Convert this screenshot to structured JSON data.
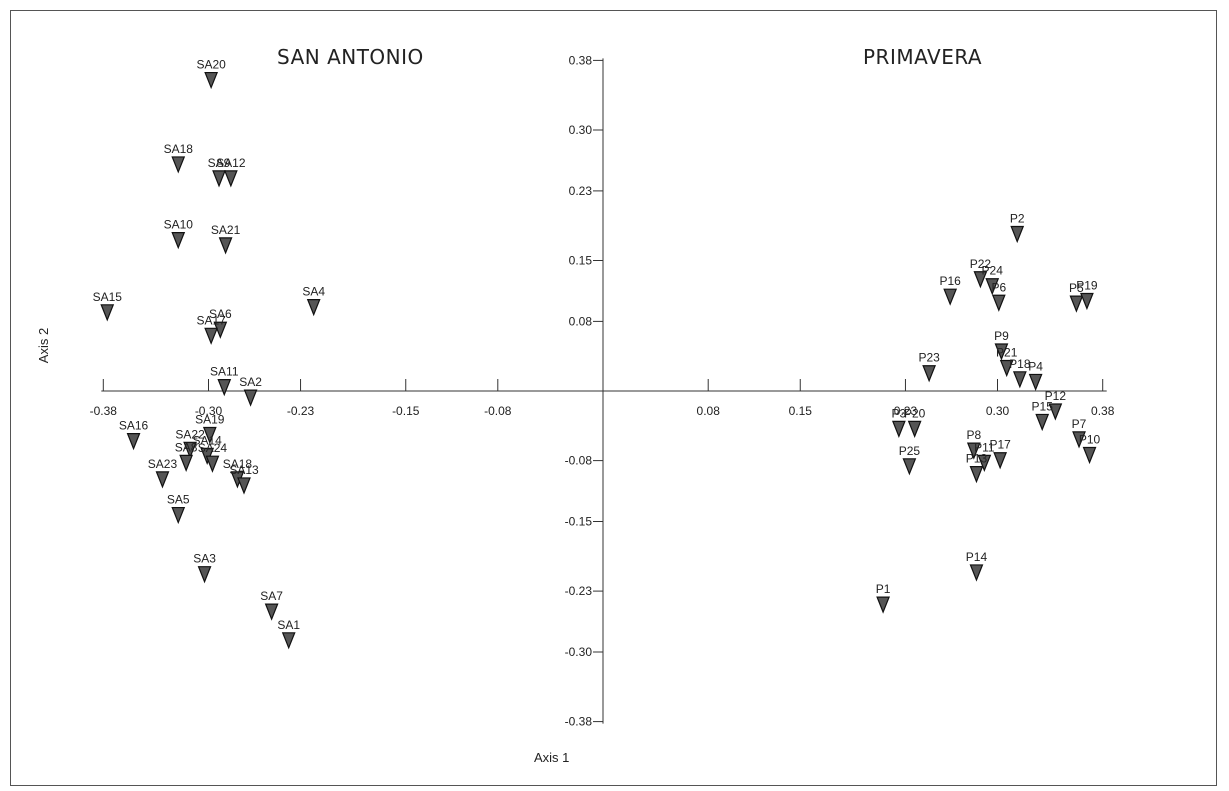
{
  "group_titles": {
    "left": "SAN ANTONIO",
    "right": "PRIMAVERA"
  },
  "chart_data": {
    "type": "scatter",
    "title": "",
    "xlabel": "Axis 1",
    "ylabel": "Axis 2",
    "xlim": [
      -0.38,
      0.38
    ],
    "ylim": [
      -0.38,
      0.38
    ],
    "grid": false,
    "marker": "inverted-triangle",
    "marker_color": "#333333",
    "x_ticks": [
      {
        "value": -0.38,
        "label": "-0.38"
      },
      {
        "value": -0.3,
        "label": "-0.30"
      },
      {
        "value": -0.23,
        "label": "-0.23"
      },
      {
        "value": -0.15,
        "label": "-0.15"
      },
      {
        "value": -0.08,
        "label": "-0.08"
      },
      {
        "value": 0.08,
        "label": "0.08"
      },
      {
        "value": 0.15,
        "label": "0.15"
      },
      {
        "value": 0.23,
        "label": "0.23"
      },
      {
        "value": 0.3,
        "label": "0.30"
      },
      {
        "value": 0.38,
        "label": "0.38"
      }
    ],
    "y_ticks": [
      {
        "value": 0.38,
        "label": "0.38"
      },
      {
        "value": 0.3,
        "label": "0.30"
      },
      {
        "value": 0.23,
        "label": "0.23"
      },
      {
        "value": 0.15,
        "label": "0.15"
      },
      {
        "value": 0.08,
        "label": "0.08"
      },
      {
        "value": -0.08,
        "label": "-0.08"
      },
      {
        "value": -0.15,
        "label": "-0.15"
      },
      {
        "value": -0.23,
        "label": "-0.23"
      },
      {
        "value": -0.3,
        "label": "-0.30"
      },
      {
        "value": -0.38,
        "label": "-0.38"
      }
    ],
    "points": [
      {
        "label": "SA20",
        "x": -0.298,
        "y": 0.358
      },
      {
        "label": "SA18",
        "x": -0.323,
        "y": 0.261
      },
      {
        "label": "SA9",
        "x": -0.292,
        "y": 0.245
      },
      {
        "label": "SA12",
        "x": -0.283,
        "y": 0.245
      },
      {
        "label": "SA10",
        "x": -0.323,
        "y": 0.174
      },
      {
        "label": "SA21",
        "x": -0.287,
        "y": 0.168
      },
      {
        "label": "SA4",
        "x": -0.22,
        "y": 0.097
      },
      {
        "label": "SA15",
        "x": -0.377,
        "y": 0.091
      },
      {
        "label": "SA6",
        "x": -0.291,
        "y": 0.071
      },
      {
        "label": "SA17",
        "x": -0.298,
        "y": 0.064
      },
      {
        "label": "SA11",
        "x": -0.288,
        "y": 0.005
      },
      {
        "label": "SA2",
        "x": -0.268,
        "y": -0.007
      },
      {
        "label": "SA16",
        "x": -0.357,
        "y": -0.057
      },
      {
        "label": "SA19",
        "x": -0.299,
        "y": -0.05
      },
      {
        "label": "SA22",
        "x": -0.314,
        "y": -0.067
      },
      {
        "label": "SA8",
        "x": -0.317,
        "y": -0.082
      },
      {
        "label": "SA14",
        "x": -0.301,
        "y": -0.074
      },
      {
        "label": "SA24",
        "x": -0.297,
        "y": -0.083
      },
      {
        "label": "SA23",
        "x": -0.335,
        "y": -0.101
      },
      {
        "label": "SA18",
        "x": -0.278,
        "y": -0.101
      },
      {
        "label": "SA13",
        "x": -0.273,
        "y": -0.108
      },
      {
        "label": "SA5",
        "x": -0.323,
        "y": -0.142
      },
      {
        "label": "SA3",
        "x": -0.303,
        "y": -0.21
      },
      {
        "label": "SA7",
        "x": -0.252,
        "y": -0.253
      },
      {
        "label": "SA1",
        "x": -0.239,
        "y": -0.286
      },
      {
        "label": "P2",
        "x": 0.315,
        "y": 0.181
      },
      {
        "label": "P22",
        "x": 0.287,
        "y": 0.129
      },
      {
        "label": "P24",
        "x": 0.296,
        "y": 0.121
      },
      {
        "label": "P16",
        "x": 0.264,
        "y": 0.109
      },
      {
        "label": "P6",
        "x": 0.301,
        "y": 0.102
      },
      {
        "label": "P5",
        "x": 0.36,
        "y": 0.101
      },
      {
        "label": "P19",
        "x": 0.368,
        "y": 0.104
      },
      {
        "label": "P9",
        "x": 0.303,
        "y": 0.046
      },
      {
        "label": "P21",
        "x": 0.307,
        "y": 0.027
      },
      {
        "label": "P18",
        "x": 0.317,
        "y": 0.014
      },
      {
        "label": "P4",
        "x": 0.329,
        "y": 0.011
      },
      {
        "label": "P23",
        "x": 0.248,
        "y": 0.021
      },
      {
        "label": "P12",
        "x": 0.344,
        "y": -0.023
      },
      {
        "label": "P15",
        "x": 0.334,
        "y": -0.035
      },
      {
        "label": "P3",
        "x": 0.225,
        "y": -0.043
      },
      {
        "label": "P20",
        "x": 0.237,
        "y": -0.043
      },
      {
        "label": "P7",
        "x": 0.362,
        "y": -0.055
      },
      {
        "label": "P10",
        "x": 0.37,
        "y": -0.073
      },
      {
        "label": "P8",
        "x": 0.282,
        "y": -0.068
      },
      {
        "label": "P11",
        "x": 0.29,
        "y": -0.082
      },
      {
        "label": "P17",
        "x": 0.302,
        "y": -0.079
      },
      {
        "label": "P13",
        "x": 0.284,
        "y": -0.095
      },
      {
        "label": "P25",
        "x": 0.233,
        "y": -0.086
      },
      {
        "label": "P14",
        "x": 0.284,
        "y": -0.208
      },
      {
        "label": "P1",
        "x": 0.213,
        "y": -0.245
      }
    ]
  }
}
